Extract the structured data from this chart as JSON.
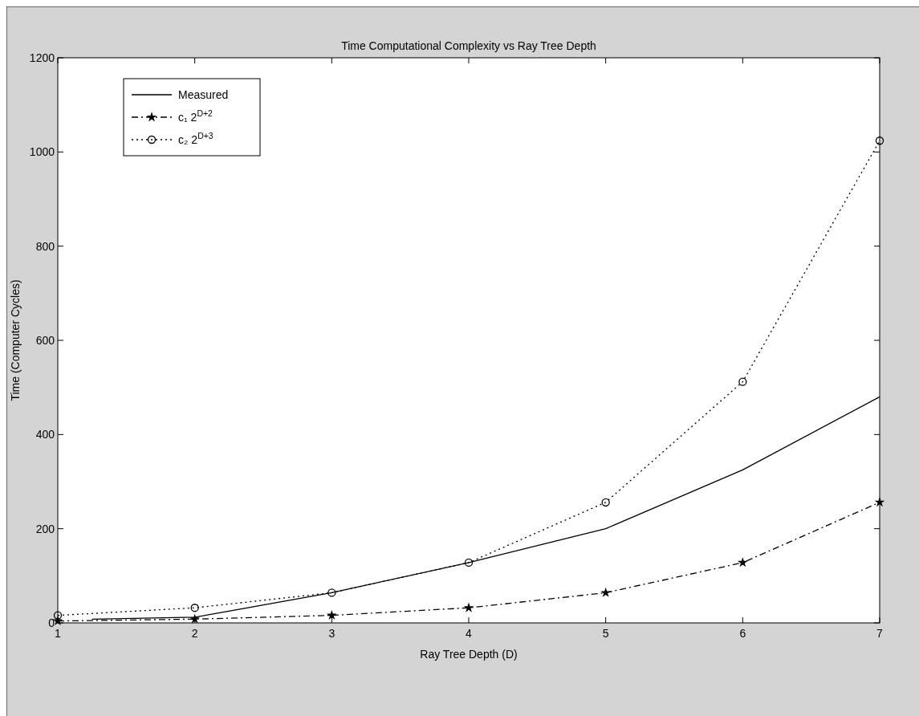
{
  "chart_data": {
    "type": "line",
    "title": "Time Computational Complexity vs Ray Tree Depth",
    "xlabel": "Ray Tree Depth (D)",
    "ylabel": "Time (Computer Cycles)",
    "x": [
      1,
      2,
      3,
      4,
      5,
      6,
      7
    ],
    "series": [
      {
        "name": "Measured",
        "color": "#000000",
        "x": [
          1.25,
          2,
          3,
          4,
          5,
          6,
          7
        ],
        "values": [
          8,
          12,
          64,
          128,
          200,
          325,
          480
        ],
        "line_style": "solid",
        "marker": "none"
      },
      {
        "name": "c₁ 2$^{D+2}$",
        "color": "#000000",
        "values": [
          4,
          8,
          16,
          32,
          64,
          128,
          256
        ],
        "line_style": "dashed",
        "marker": "star"
      },
      {
        "name": "c₂ 2$^{D+3}$",
        "color": "#000000",
        "values": [
          16,
          32,
          64,
          128,
          256,
          512,
          1024
        ],
        "line_style": "dotted",
        "marker": "circle"
      }
    ],
    "xlim": [
      1,
      7
    ],
    "xticks": [
      1,
      2,
      3,
      4,
      5,
      6,
      7
    ],
    "ylim": [
      0,
      1200
    ],
    "yticks": [
      0,
      200,
      400,
      600,
      800,
      1000,
      1200
    ],
    "grid": false,
    "legend": "top left"
  }
}
